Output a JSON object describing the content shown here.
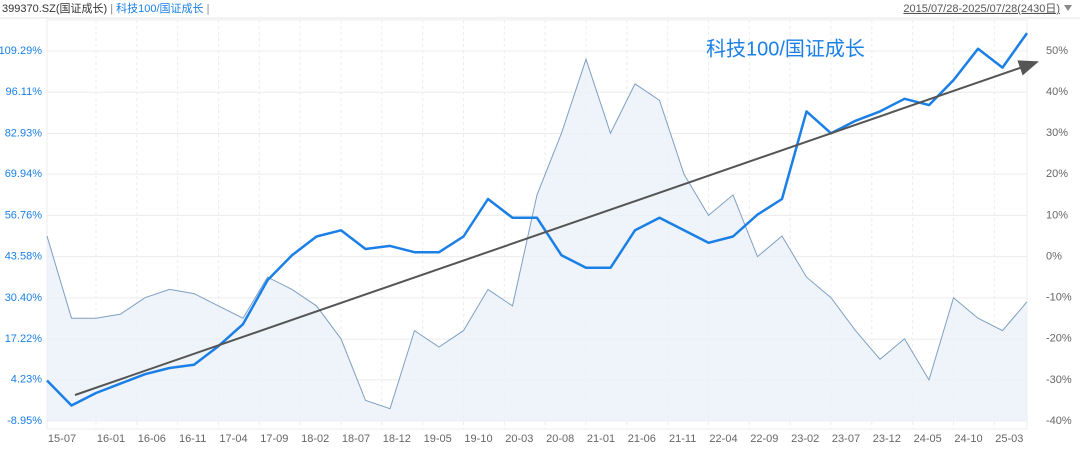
{
  "chart_data": {
    "type": "line",
    "date_range": "2015/07/28-2025/07/28(2430日)",
    "annotation": "科技100/国证成长",
    "x": [
      "15-07",
      "15-10",
      "16-01",
      "16-04",
      "16-07",
      "16-10",
      "17-01",
      "17-04",
      "17-07",
      "17-10",
      "18-01",
      "18-04",
      "18-07",
      "18-10",
      "19-01",
      "19-04",
      "19-07",
      "19-10",
      "20-01",
      "20-04",
      "20-07",
      "20-10",
      "21-01",
      "21-04",
      "21-07",
      "21-10",
      "22-01",
      "22-04",
      "22-07",
      "22-10",
      "23-01",
      "23-04",
      "23-07",
      "23-10",
      "24-01",
      "24-04",
      "24-07",
      "24-10",
      "25-01",
      "25-04",
      "25-07"
    ],
    "xticks": [
      "15-07",
      "16-01",
      "16-06",
      "16-11",
      "17-04",
      "17-09",
      "18-02",
      "18-07",
      "18-12",
      "19-05",
      "19-10",
      "20-03",
      "20-08",
      "21-01",
      "21-06",
      "21-11",
      "22-04",
      "22-09",
      "23-02",
      "23-07",
      "23-12",
      "24-05",
      "24-10",
      "25-03"
    ],
    "series": [
      {
        "name": "399370.SZ(国证成长)",
        "color": "#7f9fc2",
        "axis": "y2",
        "values": [
          5,
          -15,
          -15,
          -14,
          -10,
          -8,
          -9,
          -12,
          -15,
          -5,
          -8,
          -12,
          -20,
          -35,
          -37,
          -18,
          -22,
          -18,
          -8,
          -12,
          15,
          30,
          48,
          30,
          42,
          38,
          20,
          10,
          15,
          0,
          5,
          -5,
          -10,
          -18,
          -25,
          -20,
          -30,
          -10,
          -15,
          -18,
          -11
        ]
      },
      {
        "name": "科技100/国证成长",
        "color": "#1a7fe6",
        "values": [
          4,
          -4,
          0,
          3,
          6,
          8,
          9,
          15,
          22,
          36,
          44,
          50,
          52,
          46,
          47,
          45,
          45,
          50,
          62,
          56,
          56,
          44,
          40,
          40,
          52,
          56,
          52,
          48,
          50,
          57,
          62,
          90,
          83,
          87,
          90,
          94,
          92,
          100,
          110,
          104,
          115
        ]
      }
    ],
    "ylim": [
      -8.95,
      109.29
    ],
    "yticks": [
      {
        "value": 109.29,
        "label": "109.29%"
      },
      {
        "value": 96.11,
        "label": "96.11%"
      },
      {
        "value": 82.93,
        "label": "82.93%"
      },
      {
        "value": 69.94,
        "label": "69.94%"
      },
      {
        "value": 56.76,
        "label": "56.76%"
      },
      {
        "value": 43.58,
        "label": "43.58%"
      },
      {
        "value": 30.4,
        "label": "30.40%"
      },
      {
        "value": 17.22,
        "label": "17.22%"
      },
      {
        "value": 4.23,
        "label": "4.23%"
      },
      {
        "value": -8.95,
        "label": "-8.95%"
      }
    ],
    "y2lim": [
      -40,
      50
    ],
    "y2ticks": [
      {
        "value": 50,
        "label": "50%"
      },
      {
        "value": 40,
        "label": "40%"
      },
      {
        "value": 30,
        "label": "30%"
      },
      {
        "value": 20,
        "label": "20%"
      },
      {
        "value": 10,
        "label": "10%"
      },
      {
        "value": 0,
        "label": "0%"
      },
      {
        "value": -10,
        "label": "-10%"
      },
      {
        "value": -20,
        "label": "-20%"
      },
      {
        "value": -30,
        "label": "-30%"
      },
      {
        "value": -40,
        "label": "-40%"
      }
    ],
    "grid": true
  }
}
